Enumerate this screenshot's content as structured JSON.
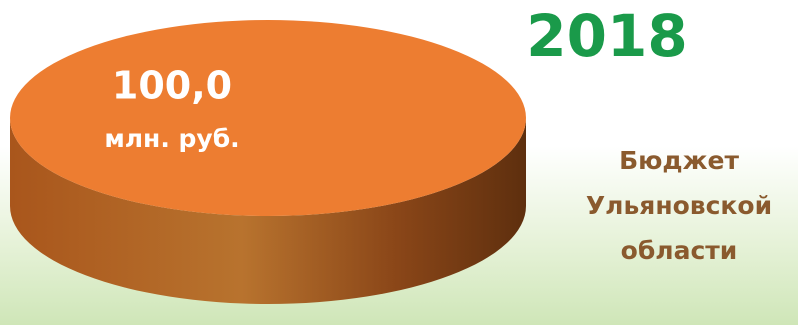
{
  "chart_data": {
    "type": "pie",
    "title": "2018",
    "categories": [
      "Бюджет Ульяновской области"
    ],
    "values": [
      100
    ],
    "value_labels": [
      "100,0"
    ],
    "unit": "млн. руб.",
    "colors": [
      "#ed7d31"
    ]
  }
}
